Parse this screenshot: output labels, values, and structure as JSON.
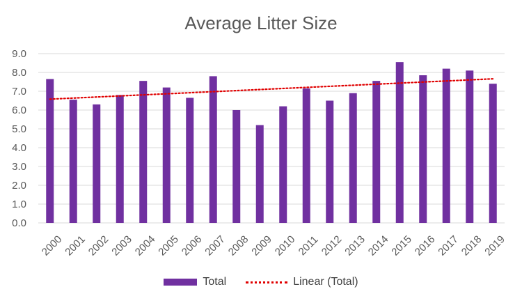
{
  "chart_data": {
    "type": "bar",
    "title": "Average Litter Size",
    "categories": [
      "2000",
      "2001",
      "2002",
      "2003",
      "2004",
      "2005",
      "2006",
      "2007",
      "2008",
      "2009",
      "2010",
      "2011",
      "2012",
      "2013",
      "2014",
      "2015",
      "2016",
      "2017",
      "2018",
      "2019"
    ],
    "series": [
      {
        "name": "Total",
        "values": [
          7.65,
          6.55,
          6.3,
          6.8,
          7.55,
          7.2,
          6.65,
          7.8,
          6.0,
          5.2,
          6.2,
          7.15,
          6.5,
          6.9,
          7.55,
          8.55,
          7.85,
          8.2,
          8.1,
          7.4
        ]
      }
    ],
    "trendline": {
      "name": "Linear (Total)",
      "type": "linear",
      "start": 6.58,
      "end": 7.66
    },
    "ylim": [
      0,
      9
    ],
    "yticks": [
      "0.0",
      "1.0",
      "2.0",
      "3.0",
      "4.0",
      "5.0",
      "6.0",
      "7.0",
      "8.0",
      "9.0"
    ],
    "grid": true,
    "legend_position": "bottom",
    "colors": {
      "bar": "#7030A0",
      "trend": "#E00000",
      "grid": "#D9D9D9",
      "text": "#595959"
    }
  }
}
